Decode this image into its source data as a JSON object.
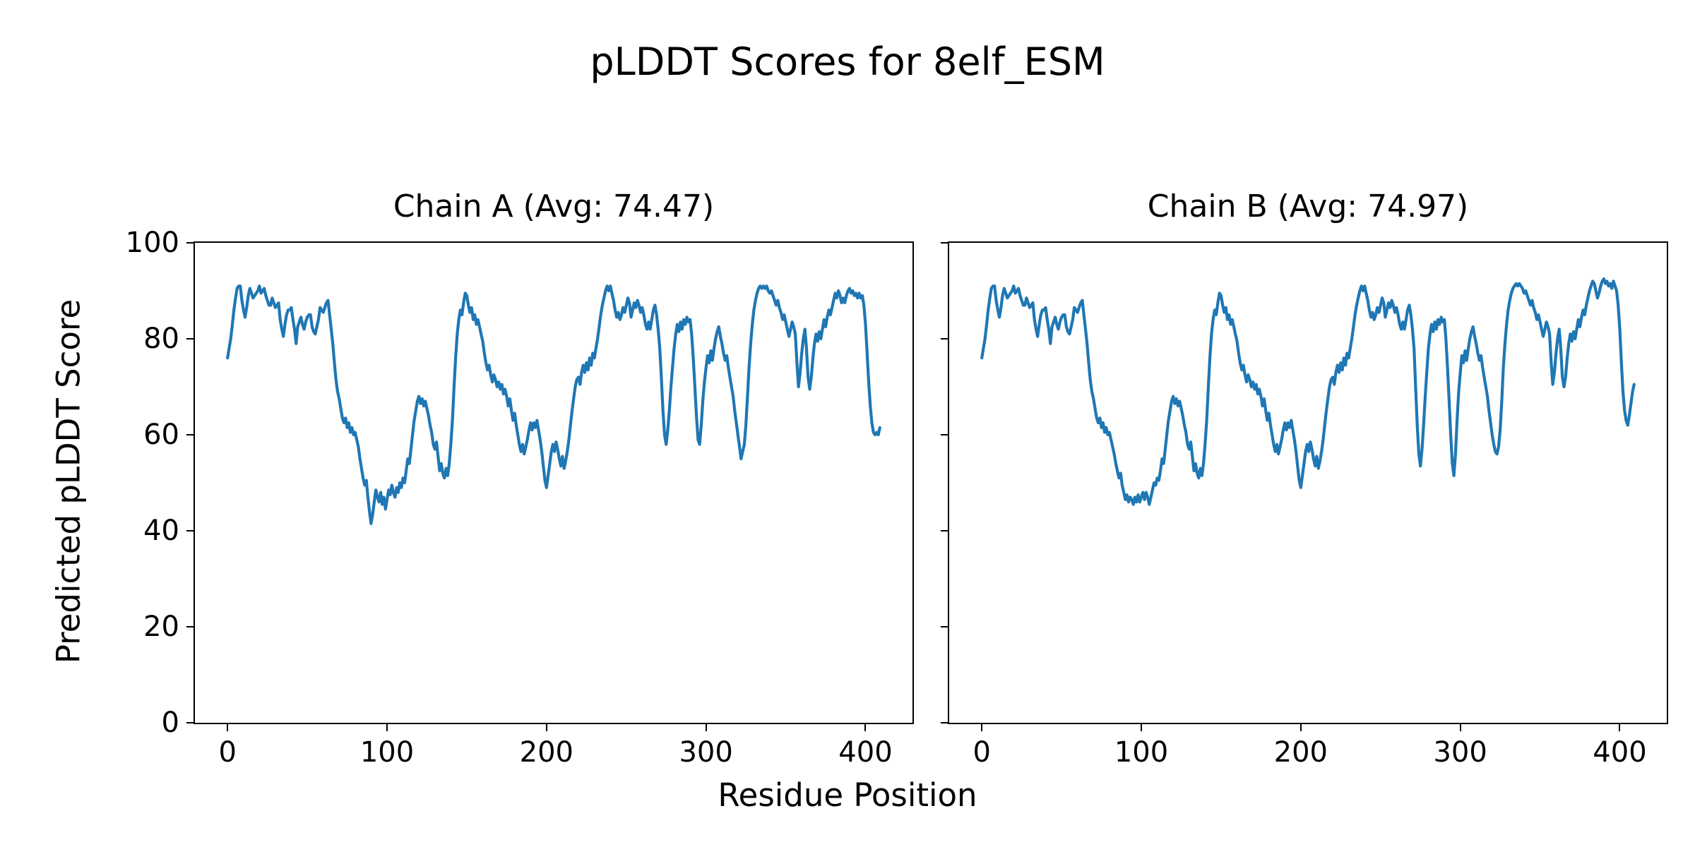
{
  "figure": {
    "suptitle": "pLDDT Scores for 8elf_ESM",
    "background": "#ffffff",
    "text_color": "#000000"
  },
  "chart_data": {
    "type": "line",
    "title": "pLDDT Scores for 8elf_ESM",
    "xlabel": "Residue Position",
    "ylabel": "Predicted pLDDT Score",
    "line_color": "#1f77b4",
    "grid": false,
    "legend": "none",
    "x_ticks": [
      0,
      100,
      200,
      300,
      400
    ],
    "y_ticks": [
      0,
      20,
      40,
      60,
      80,
      100
    ],
    "xlim": [
      -20.45,
      429.45
    ],
    "ylim": [
      0,
      100
    ],
    "x_start": 0,
    "x_step": 1,
    "subplots": [
      {
        "title": "Chain A (Avg: 74.47)",
        "chain": "A",
        "avg": 74.47,
        "n_residues": 410,
        "values": [
          76,
          78,
          80,
          83,
          86,
          88.5,
          90.5,
          91,
          91,
          88,
          86,
          84.5,
          86.5,
          89,
          90.5,
          89.5,
          88.5,
          89,
          89.5,
          90,
          91,
          89.5,
          90,
          90.5,
          89,
          88,
          87,
          87,
          88.5,
          87.5,
          86.5,
          87,
          87.5,
          84,
          82,
          80.5,
          83,
          85,
          86,
          86,
          86.5,
          84,
          82,
          79,
          82.5,
          83.5,
          84.5,
          83,
          82,
          83.5,
          84.5,
          85,
          85,
          82.5,
          81.5,
          81,
          82.5,
          84,
          86.5,
          86,
          85.5,
          86.5,
          87.5,
          88,
          85,
          82,
          79,
          75,
          71.5,
          69,
          67.5,
          65.5,
          63.5,
          62.5,
          63.5,
          61.5,
          62.5,
          60.5,
          61.5,
          60,
          60.5,
          59,
          57.5,
          55,
          53,
          51,
          49.5,
          50.5,
          47,
          44,
          41.5,
          43.5,
          46,
          48.5,
          47,
          46,
          48,
          45.5,
          47,
          44.5,
          46.5,
          48.5,
          47.5,
          49.5,
          48,
          47,
          49,
          48,
          50,
          49,
          51,
          50,
          52.5,
          55,
          54,
          57,
          60,
          63,
          65,
          67,
          68,
          66.5,
          67.5,
          66,
          67,
          65.5,
          64,
          62,
          60.5,
          58,
          57,
          58.5,
          55.5,
          52.5,
          54,
          52,
          51,
          53,
          51.5,
          54,
          58,
          63,
          70,
          76,
          81,
          84,
          86,
          85,
          87.5,
          89.5,
          89,
          87,
          85.5,
          86.5,
          84,
          85,
          83,
          84,
          82.5,
          81,
          79.5,
          77,
          75,
          73.5,
          74.5,
          72.5,
          71,
          72.5,
          71.5,
          70,
          71,
          69.5,
          70.5,
          68.5,
          69.5,
          68,
          66,
          67.5,
          65,
          63,
          64.5,
          62,
          60,
          58,
          56.5,
          58,
          56,
          57.5,
          59,
          61,
          62.5,
          61,
          62.5,
          61.5,
          63,
          61,
          59,
          56.5,
          53.5,
          50.5,
          49,
          51.5,
          54,
          56.5,
          58,
          56.5,
          58.5,
          57,
          55,
          53.5,
          55.5,
          53,
          54.5,
          56.5,
          59,
          62,
          65,
          67.5,
          70,
          71.5,
          72,
          70.5,
          73,
          74.5,
          73,
          75,
          73.5,
          76,
          74.5,
          77,
          76,
          78,
          80,
          82.5,
          85,
          87,
          88.5,
          90,
          91,
          90,
          91,
          89.5,
          88,
          86,
          84.5,
          85.5,
          84,
          85,
          86.5,
          85.5,
          87,
          88.5,
          87.5,
          84.5,
          86,
          87.5,
          86.5,
          88,
          87,
          85.5,
          86.5,
          85,
          83,
          82,
          83.5,
          82,
          84,
          86,
          87,
          85,
          82,
          78,
          72,
          65,
          60,
          58,
          61,
          65,
          70,
          74,
          78,
          81,
          83,
          81.5,
          83.5,
          82,
          84,
          83,
          84.5,
          83.5,
          84,
          81,
          76,
          70,
          64,
          59,
          58,
          62,
          67,
          71,
          74,
          76.5,
          75,
          77.5,
          75.5,
          78,
          80,
          81.5,
          82.5,
          80.5,
          79,
          77,
          75.5,
          76.5,
          74,
          72,
          70,
          68,
          65,
          62.5,
          60,
          57.5,
          55,
          56.5,
          58,
          62,
          68,
          74,
          79,
          83,
          86,
          88,
          89.5,
          90.5,
          91,
          90.5,
          91,
          90.5,
          91,
          90,
          89.5,
          90,
          89,
          88,
          87,
          88,
          86.5,
          85.5,
          84,
          85,
          83.5,
          82,
          80.5,
          82,
          83.5,
          82.5,
          81,
          75,
          70,
          73,
          77,
          80,
          82,
          78,
          72,
          69.5,
          72,
          76,
          79,
          81,
          79.5,
          81.5,
          80,
          82,
          84,
          82.5,
          84.5,
          86,
          85,
          86.5,
          88,
          89.5,
          88.5,
          90,
          89,
          87.5,
          88.5,
          87.5,
          89,
          90,
          90.5,
          89.5,
          90,
          89,
          89.5,
          88.5,
          89.5,
          88.5,
          89,
          87,
          83,
          77,
          71,
          66,
          62.5,
          60.5,
          60,
          60.5,
          60,
          61.5
        ]
      },
      {
        "title": "Chain B (Avg: 74.97)",
        "chain": "B",
        "avg": 74.97,
        "n_residues": 410,
        "values": [
          76,
          78,
          80,
          83,
          86,
          88.5,
          90.5,
          91,
          91,
          88,
          86,
          84.5,
          86.5,
          89,
          90.5,
          89.5,
          88.5,
          89,
          89.5,
          90,
          91,
          89.5,
          90,
          90.5,
          89,
          88,
          87,
          87,
          88.5,
          87.5,
          86.5,
          87,
          87.5,
          84,
          82,
          80.5,
          83,
          85,
          86,
          86,
          86.5,
          84,
          82,
          79,
          82.5,
          83.5,
          84.5,
          83,
          82,
          83.5,
          84.5,
          85,
          85,
          82.5,
          81.5,
          81,
          82.5,
          84,
          86.5,
          86,
          85.5,
          86.5,
          87.5,
          88,
          85,
          82,
          79,
          75,
          71.5,
          69,
          67.5,
          65.5,
          63.5,
          62.5,
          63.5,
          61.5,
          62.5,
          60.5,
          61.5,
          60,
          60.5,
          59,
          57.5,
          56,
          54,
          52.5,
          51,
          52,
          49.5,
          48,
          46.5,
          47.5,
          46,
          47,
          46.5,
          45.5,
          47,
          46,
          47.5,
          46,
          47,
          48,
          46.5,
          48,
          47,
          45.5,
          47,
          48.5,
          50,
          49.5,
          51,
          50.5,
          52.5,
          55,
          54,
          57,
          60,
          63,
          65,
          67,
          68,
          66.5,
          67.5,
          66,
          67,
          65.5,
          64,
          62,
          60.5,
          58,
          57,
          58.5,
          55.5,
          52.5,
          54,
          52,
          51,
          53,
          51.5,
          54,
          58,
          63,
          70,
          76,
          81,
          84,
          86,
          85,
          87.5,
          89.5,
          89,
          87,
          85.5,
          86.5,
          84,
          85,
          83,
          84,
          82.5,
          81,
          79.5,
          77,
          75,
          73.5,
          74.5,
          72.5,
          71,
          72.5,
          71.5,
          70,
          71,
          69.5,
          70.5,
          68.5,
          69.5,
          68,
          66,
          67.5,
          65,
          63,
          64.5,
          62,
          60,
          58,
          56.5,
          58,
          56,
          57.5,
          59,
          61,
          62.5,
          61,
          62.5,
          61.5,
          63,
          61,
          59,
          56.5,
          53.5,
          50.5,
          49,
          51.5,
          54,
          56.5,
          58,
          56.5,
          58.5,
          57,
          55,
          53.5,
          55.5,
          53,
          54.5,
          56.5,
          59,
          62,
          65,
          67.5,
          70,
          71.5,
          72,
          70.5,
          73,
          74.5,
          73,
          75,
          73.5,
          76,
          74.5,
          77,
          76,
          78,
          80,
          82.5,
          85,
          87,
          88.5,
          90,
          91,
          90,
          91,
          89.5,
          88,
          86,
          84.5,
          85.5,
          84,
          85,
          86.5,
          85.5,
          87,
          88.5,
          87.5,
          84.5,
          86,
          87.5,
          86.5,
          88,
          87,
          85.5,
          86.5,
          85,
          83,
          82,
          83.5,
          82,
          84,
          86,
          87,
          85,
          82,
          78,
          70,
          62,
          56,
          53.5,
          57,
          62,
          68,
          73,
          78,
          81,
          83,
          81.5,
          83.5,
          82,
          84,
          83,
          84.5,
          83.5,
          84,
          80,
          74,
          67,
          60,
          54,
          51.5,
          56,
          63,
          69,
          73,
          76.5,
          75,
          77.5,
          75.5,
          78,
          80,
          81.5,
          82.5,
          80.5,
          79,
          77,
          75.5,
          76.5,
          74,
          72,
          70,
          68,
          65,
          62.5,
          60,
          58,
          56.5,
          56,
          57.5,
          61,
          67,
          74,
          79,
          83,
          86,
          88,
          89.5,
          90.5,
          91,
          91.5,
          91,
          91.5,
          91,
          90.5,
          89.5,
          90,
          89,
          88,
          87,
          88,
          86.5,
          85.5,
          84,
          85,
          83.5,
          82,
          80.5,
          82,
          83.5,
          82.5,
          81,
          75,
          70.5,
          73,
          77,
          80,
          82,
          78,
          72,
          70,
          72,
          76,
          79,
          81,
          79.5,
          81.5,
          80,
          82,
          84,
          82.5,
          84.5,
          86,
          85,
          87,
          88.5,
          90,
          91,
          92,
          91.5,
          90,
          88.5,
          89.5,
          91,
          92,
          92.5,
          91.5,
          92,
          91,
          91.5,
          90.5,
          92,
          91,
          90,
          87,
          82,
          75,
          69,
          65,
          63,
          62,
          64,
          66.5,
          69,
          70.5
        ]
      }
    ]
  }
}
